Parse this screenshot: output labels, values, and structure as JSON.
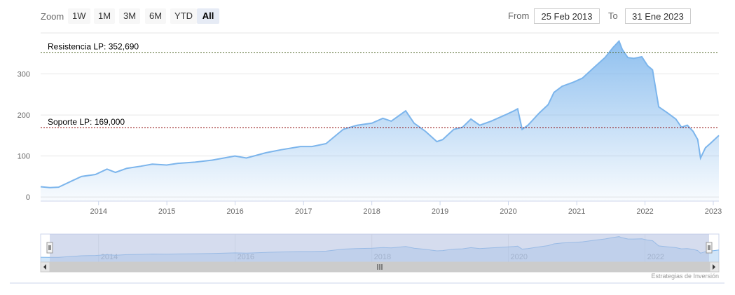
{
  "toolbar": {
    "zoom_label": "Zoom",
    "buttons": [
      {
        "label": "1W",
        "active": false
      },
      {
        "label": "1M",
        "active": false
      },
      {
        "label": "3M",
        "active": false
      },
      {
        "label": "6M",
        "active": false
      },
      {
        "label": "YTD",
        "active": false
      },
      {
        "label": "All",
        "active": true
      }
    ],
    "from_label": "From",
    "from_value": "25 Feb 2013",
    "to_label": "To",
    "to_value": "31 Ene 2023"
  },
  "credits": "Estrategias de Inversión",
  "colors": {
    "line": "#7cb5ec",
    "resistance": "#556b2f",
    "support": "#8b0000",
    "grid": "#e6e6e6",
    "navigator_mask": "#b2c0e0"
  },
  "chart_data": {
    "type": "area",
    "x_axis_type": "date",
    "x_ticks": [
      "2014",
      "2015",
      "2016",
      "2017",
      "2018",
      "2019",
      "2020",
      "2021",
      "2022",
      "2023"
    ],
    "y_ticks": [
      0,
      100,
      200,
      300
    ],
    "ylim": [
      -10,
      400
    ],
    "x": [
      "2013-02-25",
      "2013-04-15",
      "2013-06-01",
      "2013-08-15",
      "2013-10-01",
      "2013-12-15",
      "2014-02-15",
      "2014-04-01",
      "2014-06-01",
      "2014-08-15",
      "2014-10-15",
      "2014-12-31",
      "2015-03-01",
      "2015-06-01",
      "2015-09-01",
      "2015-12-31",
      "2016-03-01",
      "2016-06-15",
      "2016-09-01",
      "2016-12-15",
      "2017-02-15",
      "2017-05-01",
      "2017-08-01",
      "2017-10-15",
      "2018-01-01",
      "2018-03-01",
      "2018-04-15",
      "2018-07-01",
      "2018-08-15",
      "2018-10-15",
      "2018-12-15",
      "2019-01-15",
      "2019-03-15",
      "2019-05-01",
      "2019-06-15",
      "2019-08-01",
      "2019-10-01",
      "2019-12-15",
      "2020-01-31",
      "2020-02-20",
      "2020-03-15",
      "2020-04-15",
      "2020-06-15",
      "2020-08-01",
      "2020-09-01",
      "2020-10-15",
      "2020-12-15",
      "2021-02-01",
      "2021-04-01",
      "2021-06-01",
      "2021-07-15",
      "2021-08-15",
      "2021-09-01",
      "2021-10-01",
      "2021-11-01",
      "2021-12-15",
      "2022-01-15",
      "2022-02-10",
      "2022-03-15",
      "2022-05-01",
      "2022-06-15",
      "2022-07-15",
      "2022-08-15",
      "2022-09-15",
      "2022-10-10",
      "2022-10-25",
      "2022-11-20",
      "2022-12-15",
      "2023-01-31"
    ],
    "series": [
      {
        "values": [
          25,
          23,
          24,
          40,
          50,
          55,
          68,
          60,
          70,
          75,
          80,
          78,
          82,
          85,
          90,
          100,
          95,
          108,
          115,
          123,
          123,
          130,
          165,
          175,
          180,
          192,
          185,
          210,
          180,
          160,
          135,
          140,
          165,
          170,
          190,
          175,
          185,
          200,
          210,
          215,
          165,
          175,
          205,
          225,
          255,
          270,
          280,
          290,
          315,
          340,
          365,
          380,
          360,
          340,
          338,
          342,
          320,
          310,
          220,
          205,
          190,
          170,
          175,
          160,
          140,
          95,
          120,
          130,
          150
        ]
      }
    ],
    "plot_lines": [
      {
        "label": "Resistencia LP: 352,690",
        "value": 352.69,
        "color": "#556b2f"
      },
      {
        "label": "Soporte LP: 169,000",
        "value": 169.0,
        "color": "#8b0000"
      }
    ],
    "navigator": {
      "x_ticks": [
        "2014",
        "2016",
        "2018",
        "2020",
        "2022"
      ]
    },
    "grid": true,
    "legend": "none"
  }
}
